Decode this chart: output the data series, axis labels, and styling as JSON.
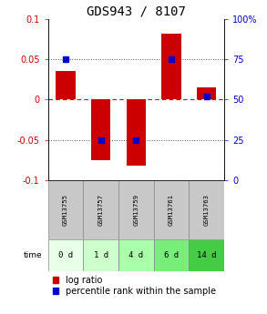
{
  "title": "GDS943 / 8107",
  "samples": [
    "GSM13755",
    "GSM13757",
    "GSM13759",
    "GSM13761",
    "GSM13763"
  ],
  "time_labels": [
    "0 d",
    "1 d",
    "4 d",
    "6 d",
    "14 d"
  ],
  "log_ratios": [
    0.035,
    -0.075,
    -0.082,
    0.082,
    0.015
  ],
  "percentile_ranks": [
    75,
    25,
    25,
    75,
    52
  ],
  "log_ratio_color": "#cc0000",
  "percentile_color": "#0000cc",
  "ylim": [
    -0.1,
    0.1
  ],
  "right_ylim": [
    0,
    100
  ],
  "right_yticks": [
    0,
    25,
    50,
    75,
    100
  ],
  "right_yticklabels": [
    "0",
    "25",
    "50",
    "75",
    "100%"
  ],
  "left_yticks": [
    -0.1,
    -0.05,
    0,
    0.05,
    0.1
  ],
  "left_yticklabels": [
    "-0.1",
    "-0.05",
    "0",
    "0.05",
    "0.1"
  ],
  "dotted_lines_black": [
    -0.05,
    0.05
  ],
  "zero_line_color": "#cc0000",
  "dot_line_color": "#555555",
  "sample_bg_color": "#c8c8c8",
  "time_row_colors": [
    "#e8ffe8",
    "#ccffcc",
    "#aaffaa",
    "#77ee77",
    "#44cc44"
  ],
  "bar_width": 0.55,
  "title_fontsize": 10,
  "tick_fontsize": 7,
  "legend_fontsize": 7
}
